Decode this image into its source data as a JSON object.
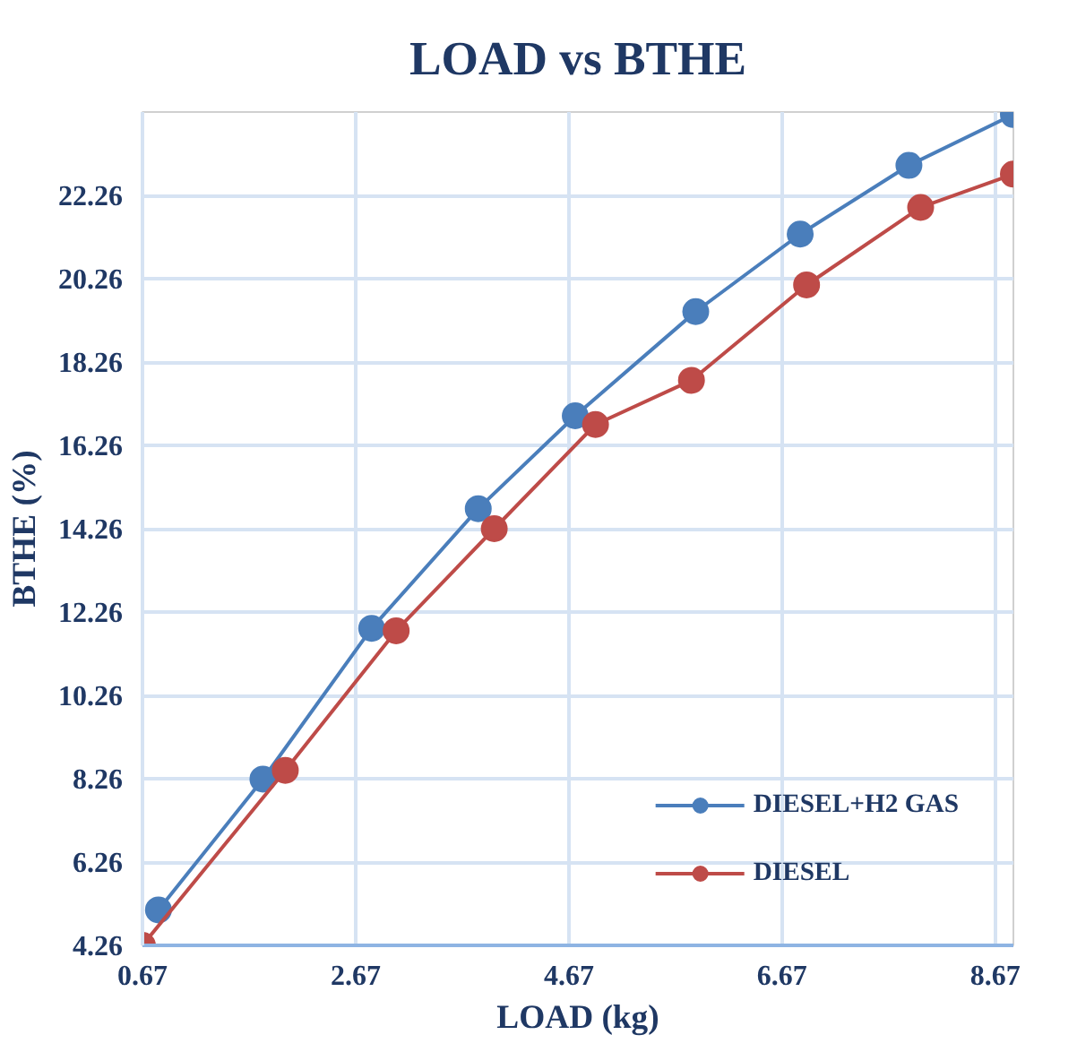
{
  "chart_data": {
    "type": "line",
    "title": "LOAD vs BTHE",
    "xlabel": "LOAD (kg)",
    "ylabel": "BTHE (%)",
    "xlim": [
      0.67,
      8.84
    ],
    "xticks": [
      0.67,
      2.67,
      4.67,
      6.67,
      8.67
    ],
    "ylim": [
      4.26,
      24.26
    ],
    "yticks": [
      4.26,
      6.26,
      8.26,
      10.26,
      12.26,
      14.26,
      16.26,
      18.26,
      20.26,
      22.26
    ],
    "grid": true,
    "legend": "bottom right",
    "marker": "circle",
    "line_style": "solid",
    "series": [
      {
        "name": "DIESEL+H2 GAS",
        "color": "#4a7ebb",
        "x": [
          0.82,
          1.8,
          2.82,
          3.82,
          4.73,
          5.86,
          6.84,
          7.86,
          8.84
        ],
        "values": [
          5.11,
          8.25,
          11.87,
          14.74,
          16.97,
          19.47,
          21.33,
          22.98,
          24.2
        ]
      },
      {
        "name": "DIESEL",
        "color": "#be4b48",
        "x": [
          0.67,
          2.01,
          3.05,
          3.97,
          4.92,
          5.82,
          6.9,
          7.97,
          8.84
        ],
        "values": [
          4.26,
          8.46,
          11.81,
          14.26,
          16.76,
          17.82,
          20.11,
          21.97,
          22.77
        ]
      }
    ]
  }
}
